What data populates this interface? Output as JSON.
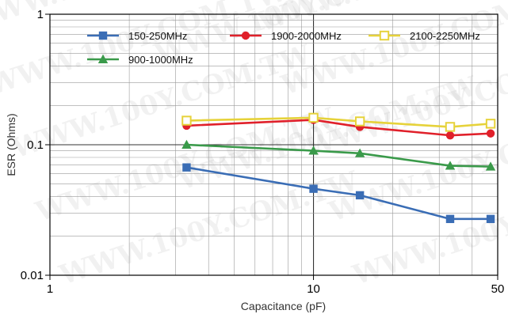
{
  "chart_data": {
    "type": "line",
    "x_scale": "log",
    "y_scale": "log",
    "xlim": [
      1,
      50
    ],
    "ylim": [
      0.01,
      1
    ],
    "xlabel": "Capacitance (pF)",
    "ylabel": "ESR (Ohms)",
    "x_ticks": [
      {
        "value": 1,
        "label": "1"
      },
      {
        "value": 10,
        "label": "10"
      },
      {
        "value": 50,
        "label": "50"
      }
    ],
    "y_ticks": [
      {
        "value": 0.01,
        "label": "0.01"
      },
      {
        "value": 0.1,
        "label": "0.1"
      },
      {
        "value": 1,
        "label": "1"
      }
    ],
    "grid": true,
    "legend_position": "top",
    "watermark": "WWW.100Y.COM.TW",
    "series": [
      {
        "name": "150-250MHz",
        "color": "#3a6db5",
        "marker": "square-filled",
        "x": [
          3.3,
          10,
          15,
          33,
          47
        ],
        "y": [
          0.067,
          0.046,
          0.041,
          0.027,
          0.027
        ]
      },
      {
        "name": "1900-2000MHz",
        "color": "#e0202a",
        "marker": "circle-filled",
        "x": [
          3.3,
          10,
          15,
          33,
          47
        ],
        "y": [
          0.14,
          0.155,
          0.137,
          0.118,
          0.122
        ]
      },
      {
        "name": "2100-2250MHz",
        "color": "#e6d23a",
        "marker": "square-open",
        "x": [
          3.3,
          10,
          15,
          33,
          47
        ],
        "y": [
          0.153,
          0.161,
          0.151,
          0.137,
          0.145
        ]
      },
      {
        "name": "900-1000MHz",
        "color": "#3a9a4a",
        "marker": "triangle-filled",
        "x": [
          3.3,
          10,
          15,
          33,
          47
        ],
        "y": [
          0.1,
          0.09,
          0.086,
          0.069,
          0.068
        ]
      }
    ]
  }
}
